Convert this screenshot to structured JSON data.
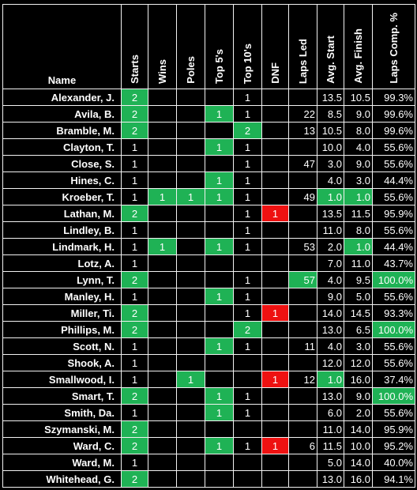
{
  "colors": {
    "background": "#000000",
    "text": "#ffffff",
    "highlight_green": "#1fb255",
    "highlight_red": "#ee1111",
    "grid": "#f2f2f2"
  },
  "headers": [
    "Name",
    "Starts",
    "Wins",
    "Poles",
    "Top 5's",
    "Top 10's",
    "DNF",
    "Laps Led",
    "Avg. Start",
    "Avg. Finish",
    "Laps Comp. %"
  ],
  "rows": [
    {
      "name": "Alexander, J.",
      "starts": "2",
      "wins": "",
      "poles": "",
      "top5": "",
      "top10": "1",
      "dnf": "",
      "laps_led": "",
      "avg_start": "13.5",
      "avg_finish": "10.5",
      "laps_pct": "99.3%",
      "hl": [
        "starts"
      ]
    },
    {
      "name": "Avila, B.",
      "starts": "2",
      "wins": "",
      "poles": "",
      "top5": "1",
      "top10": "1",
      "dnf": "",
      "laps_led": "22",
      "avg_start": "8.5",
      "avg_finish": "9.0",
      "laps_pct": "99.6%",
      "hl": [
        "starts",
        "top5"
      ]
    },
    {
      "name": "Bramble, M.",
      "starts": "2",
      "wins": "",
      "poles": "",
      "top5": "",
      "top10": "2",
      "dnf": "",
      "laps_led": "13",
      "avg_start": "10.5",
      "avg_finish": "8.0",
      "laps_pct": "99.6%",
      "hl": [
        "starts",
        "top10"
      ]
    },
    {
      "name": "Clayton, T.",
      "starts": "1",
      "wins": "",
      "poles": "",
      "top5": "1",
      "top10": "1",
      "dnf": "",
      "laps_led": "",
      "avg_start": "10.0",
      "avg_finish": "4.0",
      "laps_pct": "55.6%",
      "hl": [
        "top5"
      ]
    },
    {
      "name": "Close, S.",
      "starts": "1",
      "wins": "",
      "poles": "",
      "top5": "",
      "top10": "1",
      "dnf": "",
      "laps_led": "47",
      "avg_start": "3.0",
      "avg_finish": "9.0",
      "laps_pct": "55.6%",
      "hl": []
    },
    {
      "name": "Hines, C.",
      "starts": "1",
      "wins": "",
      "poles": "",
      "top5": "1",
      "top10": "1",
      "dnf": "",
      "laps_led": "",
      "avg_start": "4.0",
      "avg_finish": "3.0",
      "laps_pct": "44.4%",
      "hl": [
        "top5"
      ]
    },
    {
      "name": "Kroeber, T.",
      "starts": "1",
      "wins": "1",
      "poles": "1",
      "top5": "1",
      "top10": "1",
      "dnf": "",
      "laps_led": "49",
      "avg_start": "1.0",
      "avg_finish": "1.0",
      "laps_pct": "55.6%",
      "hl": [
        "wins",
        "poles",
        "top5",
        "avg_start",
        "avg_finish"
      ]
    },
    {
      "name": "Lathan, M.",
      "starts": "2",
      "wins": "",
      "poles": "",
      "top5": "",
      "top10": "1",
      "dnf": "1",
      "laps_led": "",
      "avg_start": "13.5",
      "avg_finish": "11.5",
      "laps_pct": "95.9%",
      "hl": [
        "starts"
      ]
    },
    {
      "name": "Lindley, B.",
      "starts": "1",
      "wins": "",
      "poles": "",
      "top5": "",
      "top10": "1",
      "dnf": "",
      "laps_led": "",
      "avg_start": "11.0",
      "avg_finish": "8.0",
      "laps_pct": "55.6%",
      "hl": []
    },
    {
      "name": "Lindmark, H.",
      "starts": "1",
      "wins": "1",
      "poles": "",
      "top5": "1",
      "top10": "1",
      "dnf": "",
      "laps_led": "53",
      "avg_start": "2.0",
      "avg_finish": "1.0",
      "laps_pct": "44.4%",
      "hl": [
        "wins",
        "top5",
        "avg_finish"
      ]
    },
    {
      "name": "Lotz, A.",
      "starts": "1",
      "wins": "",
      "poles": "",
      "top5": "",
      "top10": "",
      "dnf": "",
      "laps_led": "",
      "avg_start": "7.0",
      "avg_finish": "11.0",
      "laps_pct": "43.7%",
      "hl": []
    },
    {
      "name": "Lynn, T.",
      "starts": "2",
      "wins": "",
      "poles": "",
      "top5": "",
      "top10": "1",
      "dnf": "",
      "laps_led": "57",
      "avg_start": "4.0",
      "avg_finish": "9.5",
      "laps_pct": "100.0%",
      "hl": [
        "starts",
        "laps_led",
        "laps_pct"
      ]
    },
    {
      "name": "Manley, H.",
      "starts": "1",
      "wins": "",
      "poles": "",
      "top5": "1",
      "top10": "1",
      "dnf": "",
      "laps_led": "",
      "avg_start": "9.0",
      "avg_finish": "5.0",
      "laps_pct": "55.6%",
      "hl": [
        "top5"
      ]
    },
    {
      "name": "Miller, Ti.",
      "starts": "2",
      "wins": "",
      "poles": "",
      "top5": "",
      "top10": "1",
      "dnf": "1",
      "laps_led": "",
      "avg_start": "14.0",
      "avg_finish": "14.5",
      "laps_pct": "93.3%",
      "hl": [
        "starts"
      ]
    },
    {
      "name": "Phillips, M.",
      "starts": "2",
      "wins": "",
      "poles": "",
      "top5": "",
      "top10": "2",
      "dnf": "",
      "laps_led": "",
      "avg_start": "13.0",
      "avg_finish": "6.5",
      "laps_pct": "100.0%",
      "hl": [
        "starts",
        "top10",
        "laps_pct"
      ]
    },
    {
      "name": "Scott, N.",
      "starts": "1",
      "wins": "",
      "poles": "",
      "top5": "1",
      "top10": "1",
      "dnf": "",
      "laps_led": "11",
      "avg_start": "4.0",
      "avg_finish": "3.0",
      "laps_pct": "55.6%",
      "hl": [
        "top5"
      ]
    },
    {
      "name": "Shook, A.",
      "starts": "1",
      "wins": "",
      "poles": "",
      "top5": "",
      "top10": "",
      "dnf": "",
      "laps_led": "",
      "avg_start": "12.0",
      "avg_finish": "12.0",
      "laps_pct": "55.6%",
      "hl": []
    },
    {
      "name": "Smallwood, I.",
      "starts": "1",
      "wins": "",
      "poles": "1",
      "top5": "",
      "top10": "",
      "dnf": "1",
      "laps_led": "12",
      "avg_start": "1.0",
      "avg_finish": "16.0",
      "laps_pct": "37.4%",
      "hl": [
        "poles",
        "avg_start"
      ]
    },
    {
      "name": "Smart, T.",
      "starts": "2",
      "wins": "",
      "poles": "",
      "top5": "1",
      "top10": "1",
      "dnf": "",
      "laps_led": "",
      "avg_start": "13.0",
      "avg_finish": "9.0",
      "laps_pct": "100.0%",
      "hl": [
        "starts",
        "top5",
        "laps_pct"
      ]
    },
    {
      "name": "Smith, Da.",
      "starts": "1",
      "wins": "",
      "poles": "",
      "top5": "1",
      "top10": "1",
      "dnf": "",
      "laps_led": "",
      "avg_start": "6.0",
      "avg_finish": "2.0",
      "laps_pct": "55.6%",
      "hl": [
        "top5"
      ]
    },
    {
      "name": "Szymanski, M.",
      "starts": "2",
      "wins": "",
      "poles": "",
      "top5": "",
      "top10": "",
      "dnf": "",
      "laps_led": "",
      "avg_start": "11.0",
      "avg_finish": "14.0",
      "laps_pct": "95.9%",
      "hl": [
        "starts"
      ]
    },
    {
      "name": "Ward, C.",
      "starts": "2",
      "wins": "",
      "poles": "",
      "top5": "1",
      "top10": "1",
      "dnf": "1",
      "laps_led": "6",
      "avg_start": "11.5",
      "avg_finish": "10.0",
      "laps_pct": "95.2%",
      "hl": [
        "starts",
        "top5"
      ]
    },
    {
      "name": "Ward, M.",
      "starts": "1",
      "wins": "",
      "poles": "",
      "top5": "",
      "top10": "",
      "dnf": "",
      "laps_led": "",
      "avg_start": "5.0",
      "avg_finish": "14.0",
      "laps_pct": "40.0%",
      "hl": []
    },
    {
      "name": "Whitehead, G.",
      "starts": "2",
      "wins": "",
      "poles": "",
      "top5": "",
      "top10": "",
      "dnf": "",
      "laps_led": "",
      "avg_start": "13.0",
      "avg_finish": "16.0",
      "laps_pct": "94.1%",
      "hl": [
        "starts"
      ]
    }
  ]
}
